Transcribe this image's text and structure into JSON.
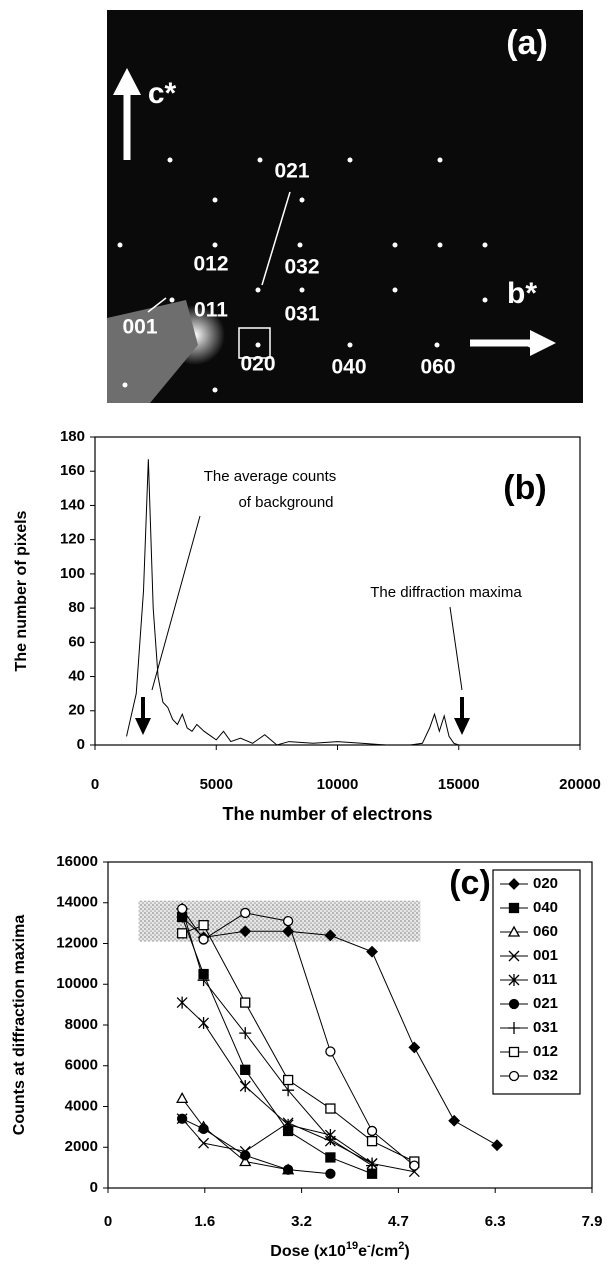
{
  "diffraction_pattern": {
    "label": "(a)",
    "c_axis": "c*",
    "b_axis": "b*",
    "spots": [
      "021",
      "012",
      "032",
      "011",
      "031",
      "001",
      "020",
      "040",
      "060"
    ]
  },
  "chart_data": [
    {
      "type": "line",
      "label": "(b)",
      "xlabel": "The number of electrons",
      "ylabel": "The number of pixels",
      "annotations": [
        "The average counts",
        "of background",
        "The diffraction maxima"
      ],
      "color": "#000000",
      "x": [
        1300,
        1700,
        2000,
        2200,
        2400,
        2600,
        2800,
        3000,
        3200,
        3400,
        3600,
        3800,
        4000,
        4200,
        4500,
        4800,
        5000,
        5300,
        5600,
        6000,
        6500,
        7000,
        7500,
        8000,
        9000,
        10000,
        11000,
        12000,
        13000,
        13500,
        13800,
        14000,
        14200,
        14400,
        14600,
        14800,
        15000
      ],
      "values": [
        5,
        30,
        90,
        167,
        80,
        40,
        25,
        22,
        15,
        12,
        18,
        10,
        8,
        12,
        8,
        5,
        3,
        8,
        2,
        4,
        1,
        6,
        0,
        2,
        1,
        2,
        1,
        0,
        0,
        1,
        10,
        18,
        8,
        17,
        5,
        1,
        0
      ],
      "xlim": [
        0,
        20000
      ],
      "xticks": [
        0,
        5000,
        10000,
        15000,
        20000
      ],
      "ylim": [
        0,
        180
      ],
      "yticks": [
        0,
        20,
        40,
        60,
        80,
        100,
        120,
        140,
        160,
        180
      ]
    },
    {
      "type": "line",
      "label": "(c)",
      "xlabel": [
        "Dose (x10",
        "19",
        "e",
        "-",
        "/cm",
        "2",
        ")"
      ],
      "ylabel": "Counts at diffraction maxima",
      "x": [
        1.21,
        1.56,
        2.24,
        2.94,
        3.63,
        4.31,
        5.0,
        5.65,
        6.35
      ],
      "shaded_region": {
        "x": [
          0.5,
          5.1
        ],
        "y": [
          12100,
          14100
        ]
      },
      "series": [
        {
          "name": "020",
          "color": "#000000",
          "marker": "diamond",
          "filled": true,
          "values": [
            13300,
            12300,
            12600,
            12600,
            12400,
            11600,
            6900,
            3300,
            2100
          ]
        },
        {
          "name": "040",
          "color": "#000000",
          "marker": "square",
          "filled": true,
          "values": [
            13300,
            10500,
            5800,
            2800,
            1500,
            700,
            null,
            null,
            null
          ]
        },
        {
          "name": "060",
          "color": "#000000",
          "marker": "triangle",
          "filled": false,
          "values": [
            4400,
            3000,
            1300,
            900,
            null,
            null,
            null,
            null,
            null
          ]
        },
        {
          "name": "001",
          "color": "#000000",
          "marker": "x",
          "filled": false,
          "values": [
            3400,
            2200,
            1800,
            3200,
            2300,
            1200,
            800,
            null,
            null
          ]
        },
        {
          "name": "011",
          "color": "#000000",
          "marker": "asterisk",
          "filled": false,
          "values": [
            9100,
            8100,
            5000,
            3100,
            2600,
            1200,
            null,
            null,
            null
          ]
        },
        {
          "name": "021",
          "color": "#000000",
          "marker": "circle",
          "filled": true,
          "values": [
            3400,
            2900,
            1600,
            900,
            700,
            null,
            null,
            null,
            null
          ]
        },
        {
          "name": "031",
          "color": "#000000",
          "marker": "plus",
          "filled": false,
          "values": [
            13700,
            10200,
            7600,
            4800,
            2400,
            1100,
            null,
            null,
            null
          ]
        },
        {
          "name": "012",
          "color": "#000000",
          "marker": "square",
          "filled": false,
          "values": [
            12500,
            12900,
            9100,
            5300,
            3900,
            2300,
            1300,
            null,
            null
          ]
        },
        {
          "name": "032",
          "color": "#000000",
          "marker": "circle",
          "filled": false,
          "values": [
            13700,
            12200,
            13500,
            13100,
            6700,
            2800,
            1100,
            null,
            null
          ]
        }
      ],
      "xlim": [
        0,
        7.9
      ],
      "xticks": [
        0,
        {
          "value": 1.58,
          "label": "1.6"
        },
        {
          "value": 3.16,
          "label": "3.2"
        },
        {
          "value": 4.74,
          "label": "4.7"
        },
        {
          "value": 6.32,
          "label": "6.3"
        },
        7.9
      ],
      "ylim": [
        0,
        16000
      ],
      "yticks": [
        0,
        2000,
        4000,
        6000,
        8000,
        10000,
        12000,
        14000,
        16000
      ],
      "legend": "upper right"
    }
  ]
}
